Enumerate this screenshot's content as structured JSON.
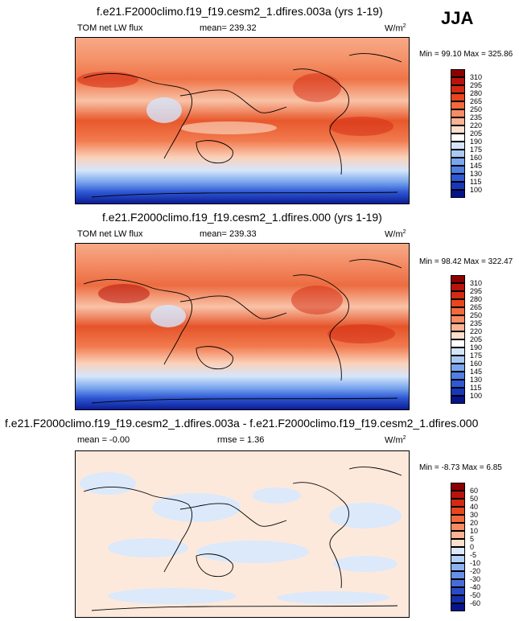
{
  "season": "JJA",
  "panels": [
    {
      "title": "f.e21.F2000climo.f19_f19.cesm2_1.dfires.003a (yrs 1-19)",
      "left_label": "TOM net LW flux",
      "center_label": "mean=  239.32",
      "units": "W/m",
      "units_sup": "2",
      "minmax": "Min =  99.10 Max = 325.86",
      "colorbar_labels": [
        "310",
        "295",
        "280",
        "265",
        "250",
        "235",
        "220",
        "205",
        "190",
        "175",
        "160",
        "145",
        "130",
        "115",
        "100"
      ],
      "colors": [
        "#8b0000",
        "#b8140c",
        "#d42a12",
        "#e8461e",
        "#f26a3c",
        "#f78c62",
        "#fbb393",
        "#fde0cc",
        "#ffffff",
        "#d4e5fb",
        "#a9c9f5",
        "#7aa6ee",
        "#4f7fe3",
        "#2f58d4",
        "#1638b8",
        "#06148c"
      ]
    },
    {
      "title": "f.e21.F2000climo.f19_f19.cesm2_1.dfires.000 (yrs 1-19)",
      "left_label": "TOM net LW flux",
      "center_label": "mean=  239.33",
      "units": "W/m",
      "units_sup": "2",
      "minmax": "Min =  98.42 Max = 322.47",
      "colorbar_labels": [
        "310",
        "295",
        "280",
        "265",
        "250",
        "235",
        "220",
        "205",
        "190",
        "175",
        "160",
        "145",
        "130",
        "115",
        "100"
      ],
      "colors": [
        "#8b0000",
        "#b8140c",
        "#d42a12",
        "#e8461e",
        "#f26a3c",
        "#f78c62",
        "#fbb393",
        "#fde0cc",
        "#ffffff",
        "#d4e5fb",
        "#a9c9f5",
        "#7aa6ee",
        "#4f7fe3",
        "#2f58d4",
        "#1638b8",
        "#06148c"
      ]
    },
    {
      "title": "f.e21.F2000climo.f19_f19.cesm2_1.dfires.003a - f.e21.F2000climo.f19_f19.cesm2_1.dfires.000",
      "left_label": "mean =  -0.00",
      "center_label": "rmse =   1.36",
      "units": "W/m",
      "units_sup": "2",
      "minmax": "Min =  -8.73 Max =   6.85",
      "colorbar_labels": [
        "60",
        "50",
        "40",
        "30",
        "20",
        "10",
        "5",
        "0",
        "-5",
        "-10",
        "-20",
        "-30",
        "-40",
        "-50",
        "-60"
      ],
      "colors": [
        "#8b0000",
        "#b8140c",
        "#d42a12",
        "#e8461e",
        "#f26a3c",
        "#f78c62",
        "#fbb393",
        "#fde0cc",
        "#dbe9fb",
        "#b4d0f6",
        "#8cb2f0",
        "#6690e6",
        "#456cd9",
        "#2a4bc6",
        "#1530a8",
        "#06148c"
      ]
    }
  ],
  "chart_data": [
    {
      "type": "heatmap",
      "title": "f.e21.F2000climo.f19_f19.cesm2_1.dfires.003a (yrs 1-19)",
      "variable": "TOM net LW flux",
      "units": "W/m2",
      "mean": 239.32,
      "min": 99.1,
      "max": 325.86,
      "levels": [
        100,
        115,
        130,
        145,
        160,
        175,
        190,
        205,
        220,
        235,
        250,
        265,
        280,
        295,
        310
      ]
    },
    {
      "type": "heatmap",
      "title": "f.e21.F2000climo.f19_f19.cesm2_1.dfires.000 (yrs 1-19)",
      "variable": "TOM net LW flux",
      "units": "W/m2",
      "mean": 239.33,
      "min": 98.42,
      "max": 322.47,
      "levels": [
        100,
        115,
        130,
        145,
        160,
        175,
        190,
        205,
        220,
        235,
        250,
        265,
        280,
        295,
        310
      ]
    },
    {
      "type": "heatmap",
      "title": "f.e21.F2000climo.f19_f19.cesm2_1.dfires.003a - f.e21.F2000climo.f19_f19.cesm2_1.dfires.000",
      "units": "W/m2",
      "mean": -0.0,
      "rmse": 1.36,
      "min": -8.73,
      "max": 6.85,
      "levels": [
        -60,
        -50,
        -40,
        -30,
        -20,
        -10,
        -5,
        0,
        5,
        10,
        20,
        30,
        40,
        50,
        60
      ]
    }
  ]
}
